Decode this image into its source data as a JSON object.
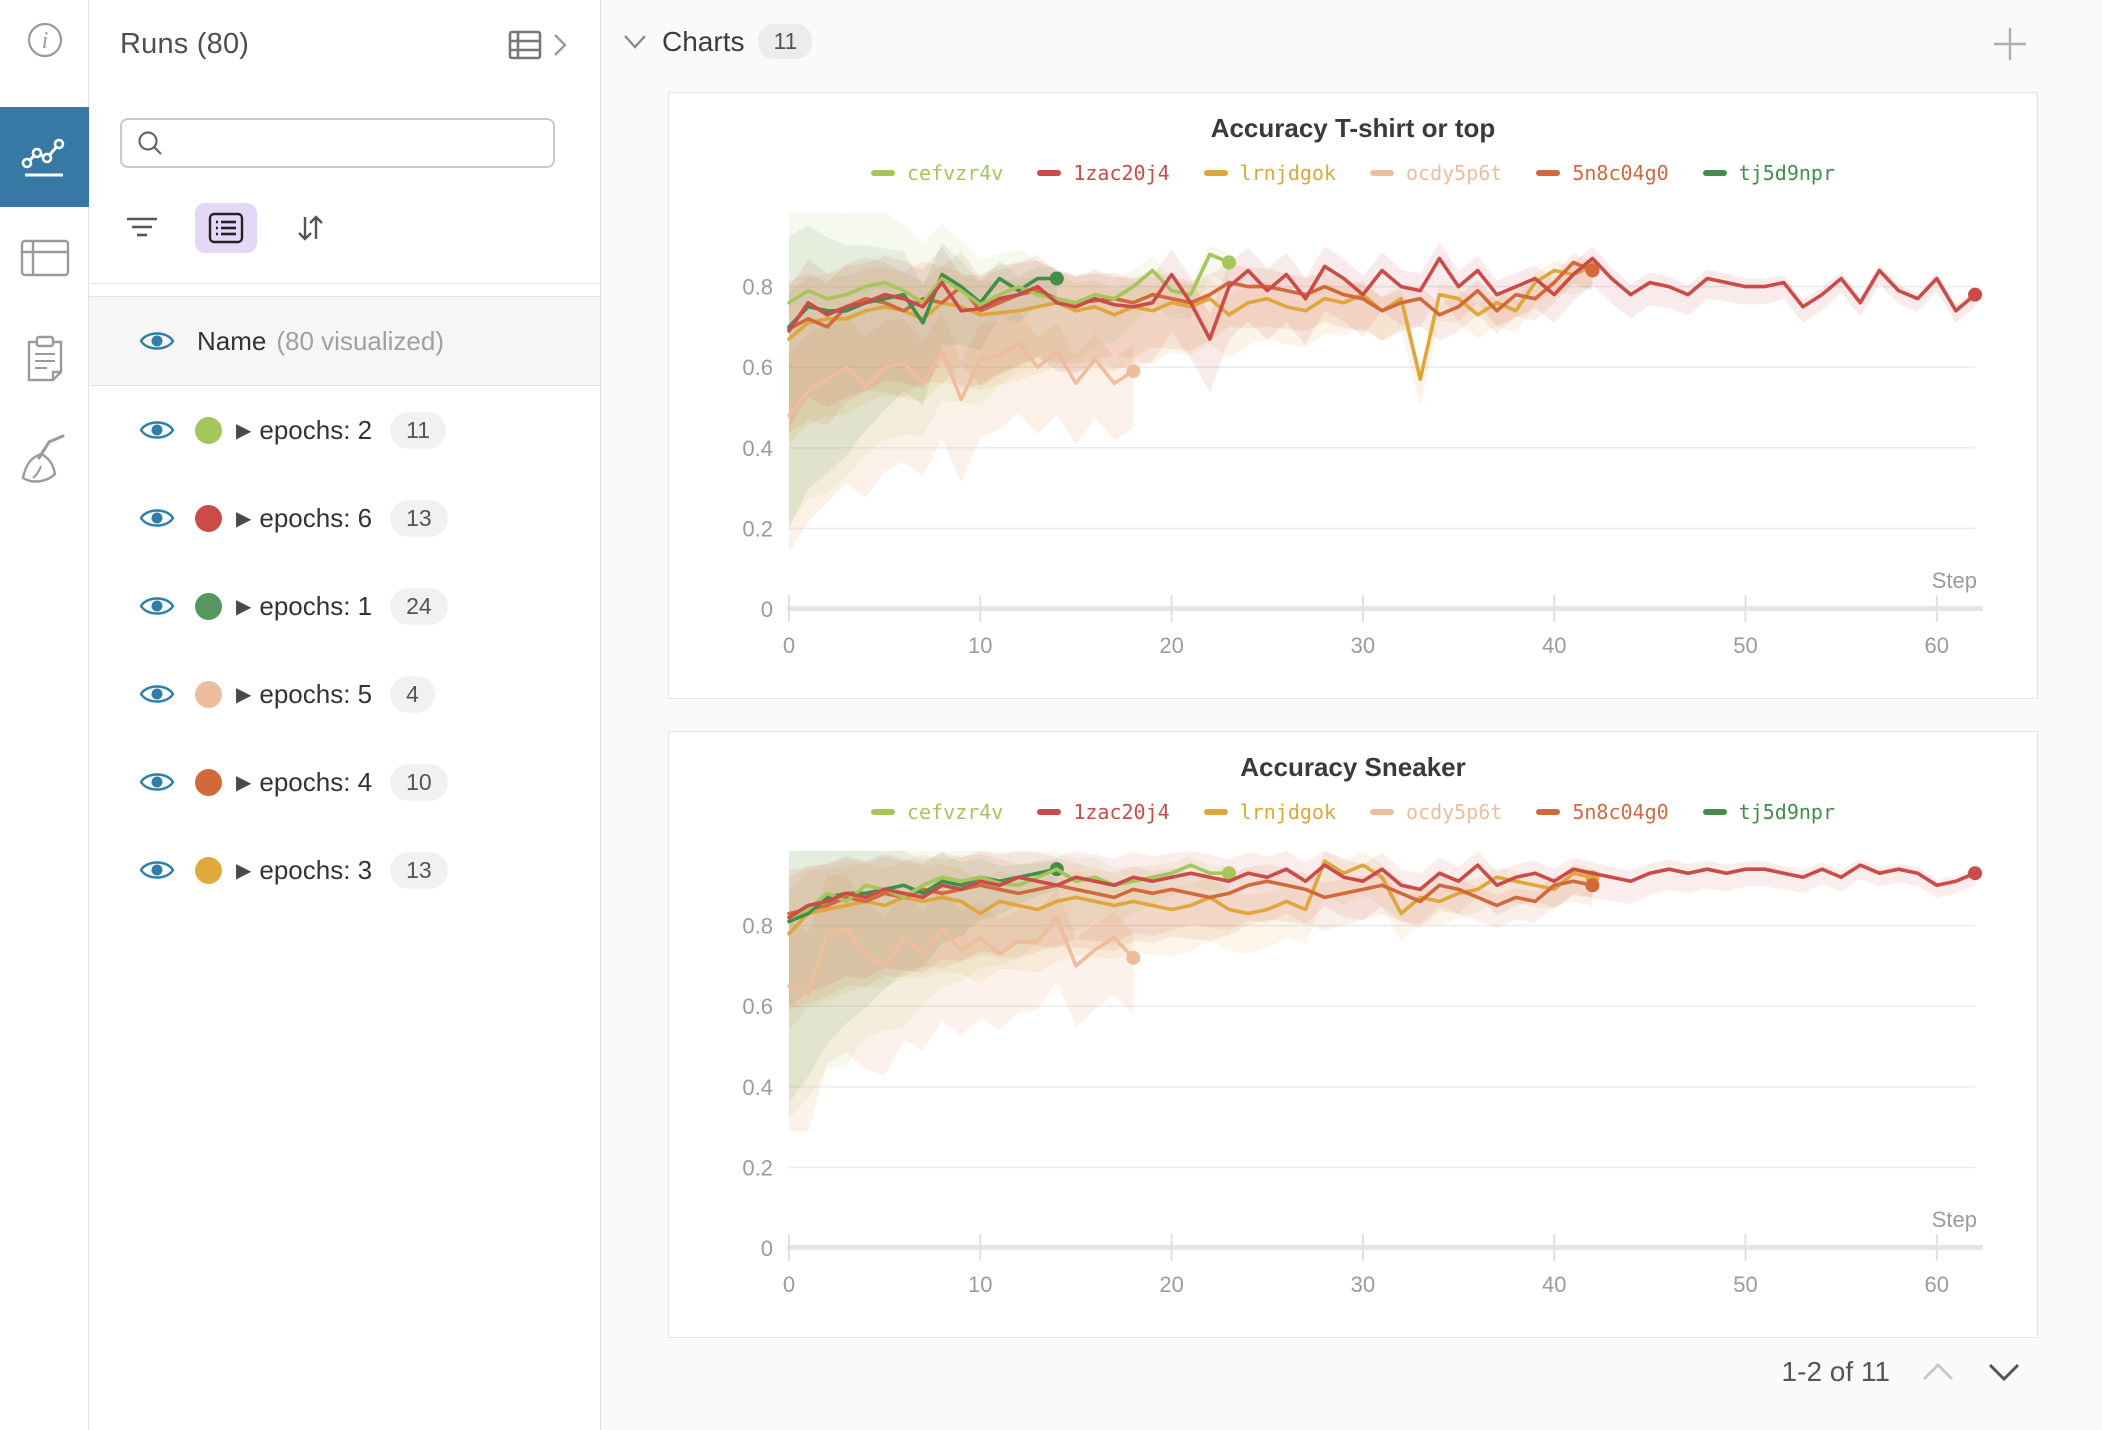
{
  "accent": {
    "rail_active_bg": "#3878a5",
    "eye_blue": "#2f7ea8",
    "purple_btn_bg": "#e4d8f6",
    "page_bg": "#fafafa",
    "card_border": "#e4e4e4"
  },
  "rail": {
    "icons": [
      "info-icon",
      "line-chart-icon",
      "table-icon",
      "clipboard-icon",
      "broom-icon"
    ],
    "active": "line-chart-icon"
  },
  "sidebar": {
    "title": "Runs (80)",
    "search_placeholder": "",
    "search_value": "",
    "header_row": {
      "label": "Name",
      "sublabel": "(80 visualized)"
    },
    "runs": [
      {
        "label": "epochs: 2",
        "count": "11",
        "color": "#a4c65b"
      },
      {
        "label": "epochs: 6",
        "count": "13",
        "color": "#cb4b49"
      },
      {
        "label": "epochs: 1",
        "count": "24",
        "color": "#55975f"
      },
      {
        "label": "epochs: 5",
        "count": "4",
        "color": "#eebd9d"
      },
      {
        "label": "epochs: 4",
        "count": "10",
        "color": "#d2693b"
      },
      {
        "label": "epochs: 3",
        "count": "13",
        "color": "#e0a93c"
      }
    ]
  },
  "main": {
    "section_label": "Charts",
    "section_count": "11",
    "pagination": {
      "label": "1-2 of 11"
    }
  },
  "chart_data": [
    {
      "type": "line",
      "title": "Accuracy T-shirt or top",
      "xlabel": "Step",
      "ylabel": "",
      "x_ticks": [
        0,
        10,
        20,
        30,
        40,
        50,
        60
      ],
      "y_ticks": [
        0,
        0.2,
        0.4,
        0.6,
        0.8
      ],
      "xlim": [
        0,
        63
      ],
      "ylim": [
        0,
        1
      ],
      "grid": true,
      "legend_position": "top",
      "series": [
        {
          "name": "ocdy5p6t",
          "color": "#eebd9d",
          "band_start": 0.34,
          "band_end": 0.14,
          "band_opacity": 0.22,
          "values": [
            0.48,
            0.54,
            0.57,
            0.6,
            0.55,
            0.6,
            0.61,
            0.56,
            0.64,
            0.52,
            0.62,
            0.63,
            0.66,
            0.6,
            0.64,
            0.56,
            0.62,
            0.56,
            0.59
          ]
        },
        {
          "name": "lrnjdgok",
          "color": "#dfa63c",
          "band_start": 0.26,
          "band_end": 0.05,
          "band_opacity": 0.12,
          "values": [
            0.67,
            0.71,
            0.72,
            0.72,
            0.74,
            0.75,
            0.74,
            0.72,
            0.76,
            0.75,
            0.73,
            0.735,
            0.74,
            0.75,
            0.76,
            0.74,
            0.75,
            0.73,
            0.75,
            0.74,
            0.76,
            0.75,
            0.77,
            0.73,
            0.76,
            0.77,
            0.75,
            0.74,
            0.77,
            0.76,
            0.78,
            0.74,
            0.77,
            0.57,
            0.78,
            0.77,
            0.73,
            0.76,
            0.74,
            0.81,
            0.84,
            0.83,
            0.85
          ]
        },
        {
          "name": "5n8c04g0",
          "color": "#d2693b",
          "band_start": 0.26,
          "band_end": 0.05,
          "band_opacity": 0.12,
          "values": [
            0.695,
            0.72,
            0.7,
            0.75,
            0.77,
            0.76,
            0.74,
            0.77,
            0.76,
            0.8,
            0.74,
            0.76,
            0.78,
            0.79,
            0.77,
            0.76,
            0.765,
            0.77,
            0.76,
            0.78,
            0.77,
            0.76,
            0.78,
            0.81,
            0.8,
            0.8,
            0.79,
            0.78,
            0.8,
            0.78,
            0.77,
            0.74,
            0.76,
            0.77,
            0.73,
            0.75,
            0.79,
            0.74,
            0.78,
            0.77,
            0.81,
            0.86,
            0.84
          ]
        },
        {
          "name": "tj5d9npr",
          "color": "#418e4b",
          "band_start": 0.5,
          "band_end": 0.06,
          "band_opacity": 0.1,
          "values": [
            0.7,
            0.75,
            0.74,
            0.74,
            0.76,
            0.77,
            0.78,
            0.71,
            0.83,
            0.8,
            0.76,
            0.82,
            0.79,
            0.82,
            0.82
          ]
        },
        {
          "name": "cefvzr4v",
          "color": "#a4c65b",
          "band_start": 0.55,
          "band_end": 0.05,
          "band_opacity": 0.1,
          "values": [
            0.76,
            0.79,
            0.77,
            0.78,
            0.8,
            0.81,
            0.79,
            0.76,
            0.82,
            0.79,
            0.755,
            0.78,
            0.8,
            0.78,
            0.77,
            0.76,
            0.78,
            0.77,
            0.8,
            0.84,
            0.79,
            0.78,
            0.88,
            0.86
          ]
        },
        {
          "name": "1zac20j4",
          "color": "#cb4b49",
          "band_start": 0.24,
          "band_end": 0.03,
          "band_opacity": 0.11,
          "values": [
            0.69,
            0.76,
            0.73,
            0.75,
            0.76,
            0.78,
            0.77,
            0.75,
            0.81,
            0.74,
            0.745,
            0.77,
            0.78,
            0.8,
            0.76,
            0.75,
            0.77,
            0.755,
            0.75,
            0.76,
            0.83,
            0.76,
            0.67,
            0.8,
            0.84,
            0.79,
            0.83,
            0.77,
            0.85,
            0.82,
            0.78,
            0.84,
            0.8,
            0.79,
            0.87,
            0.8,
            0.84,
            0.78,
            0.8,
            0.82,
            0.78,
            0.83,
            0.87,
            0.82,
            0.78,
            0.81,
            0.8,
            0.78,
            0.82,
            0.81,
            0.8,
            0.8,
            0.81,
            0.75,
            0.78,
            0.82,
            0.76,
            0.84,
            0.79,
            0.77,
            0.82,
            0.74,
            0.78
          ]
        }
      ]
    },
    {
      "type": "line",
      "title": "Accuracy Sneaker",
      "xlabel": "Step",
      "ylabel": "",
      "x_ticks": [
        0,
        10,
        20,
        30,
        40,
        50,
        60
      ],
      "y_ticks": [
        0,
        0.2,
        0.4,
        0.6,
        0.8
      ],
      "xlim": [
        0,
        63
      ],
      "ylim": [
        0,
        1
      ],
      "grid": true,
      "legend_position": "top",
      "series": [
        {
          "name": "ocdy5p6t",
          "color": "#eebd9d",
          "band_start": 0.36,
          "band_end": 0.14,
          "band_opacity": 0.2,
          "values": [
            0.65,
            0.63,
            0.78,
            0.79,
            0.73,
            0.7,
            0.77,
            0.73,
            0.79,
            0.74,
            0.77,
            0.73,
            0.76,
            0.76,
            0.82,
            0.7,
            0.74,
            0.77,
            0.72
          ]
        },
        {
          "name": "lrnjdgok",
          "color": "#dfa63c",
          "band_start": 0.24,
          "band_end": 0.05,
          "band_opacity": 0.11,
          "values": [
            0.78,
            0.83,
            0.84,
            0.85,
            0.86,
            0.85,
            0.87,
            0.86,
            0.87,
            0.86,
            0.83,
            0.86,
            0.85,
            0.84,
            0.86,
            0.87,
            0.86,
            0.85,
            0.86,
            0.85,
            0.84,
            0.85,
            0.87,
            0.84,
            0.83,
            0.84,
            0.86,
            0.84,
            0.96,
            0.93,
            0.95,
            0.92,
            0.83,
            0.87,
            0.86,
            0.88,
            0.89,
            0.92,
            0.91,
            0.9,
            0.89,
            0.93,
            0.92
          ]
        },
        {
          "name": "5n8c04g0",
          "color": "#d2693b",
          "band_start": 0.24,
          "band_end": 0.05,
          "band_opacity": 0.11,
          "values": [
            0.83,
            0.84,
            0.85,
            0.87,
            0.86,
            0.88,
            0.87,
            0.89,
            0.88,
            0.89,
            0.9,
            0.89,
            0.88,
            0.89,
            0.9,
            0.89,
            0.88,
            0.87,
            0.89,
            0.88,
            0.89,
            0.88,
            0.87,
            0.88,
            0.9,
            0.91,
            0.9,
            0.89,
            0.87,
            0.88,
            0.89,
            0.9,
            0.88,
            0.86,
            0.9,
            0.89,
            0.87,
            0.85,
            0.87,
            0.86,
            0.9,
            0.91,
            0.9
          ]
        },
        {
          "name": "tj5d9npr",
          "color": "#418e4b",
          "band_start": 0.45,
          "band_end": 0.05,
          "band_opacity": 0.1,
          "values": [
            0.81,
            0.83,
            0.87,
            0.88,
            0.88,
            0.89,
            0.9,
            0.88,
            0.91,
            0.9,
            0.92,
            0.91,
            0.92,
            0.93,
            0.94
          ]
        },
        {
          "name": "cefvzr4v",
          "color": "#a4c65b",
          "band_start": 0.5,
          "band_end": 0.04,
          "band_opacity": 0.1,
          "values": [
            0.82,
            0.84,
            0.88,
            0.86,
            0.9,
            0.89,
            0.87,
            0.9,
            0.92,
            0.91,
            0.92,
            0.905,
            0.9,
            0.92,
            0.94,
            0.91,
            0.92,
            0.9,
            0.91,
            0.92,
            0.93,
            0.95,
            0.93,
            0.93
          ]
        },
        {
          "name": "1zac20j4",
          "color": "#cb4b49",
          "band_start": 0.22,
          "band_end": 0.03,
          "band_opacity": 0.1,
          "values": [
            0.82,
            0.85,
            0.86,
            0.88,
            0.87,
            0.89,
            0.88,
            0.87,
            0.9,
            0.89,
            0.91,
            0.9,
            0.92,
            0.91,
            0.9,
            0.92,
            0.91,
            0.9,
            0.92,
            0.91,
            0.92,
            0.93,
            0.92,
            0.91,
            0.93,
            0.92,
            0.94,
            0.91,
            0.95,
            0.92,
            0.91,
            0.94,
            0.9,
            0.89,
            0.93,
            0.91,
            0.95,
            0.9,
            0.92,
            0.93,
            0.91,
            0.94,
            0.93,
            0.92,
            0.91,
            0.93,
            0.94,
            0.93,
            0.94,
            0.93,
            0.94,
            0.94,
            0.93,
            0.92,
            0.94,
            0.92,
            0.95,
            0.93,
            0.94,
            0.93,
            0.9,
            0.91,
            0.93
          ]
        }
      ]
    }
  ]
}
